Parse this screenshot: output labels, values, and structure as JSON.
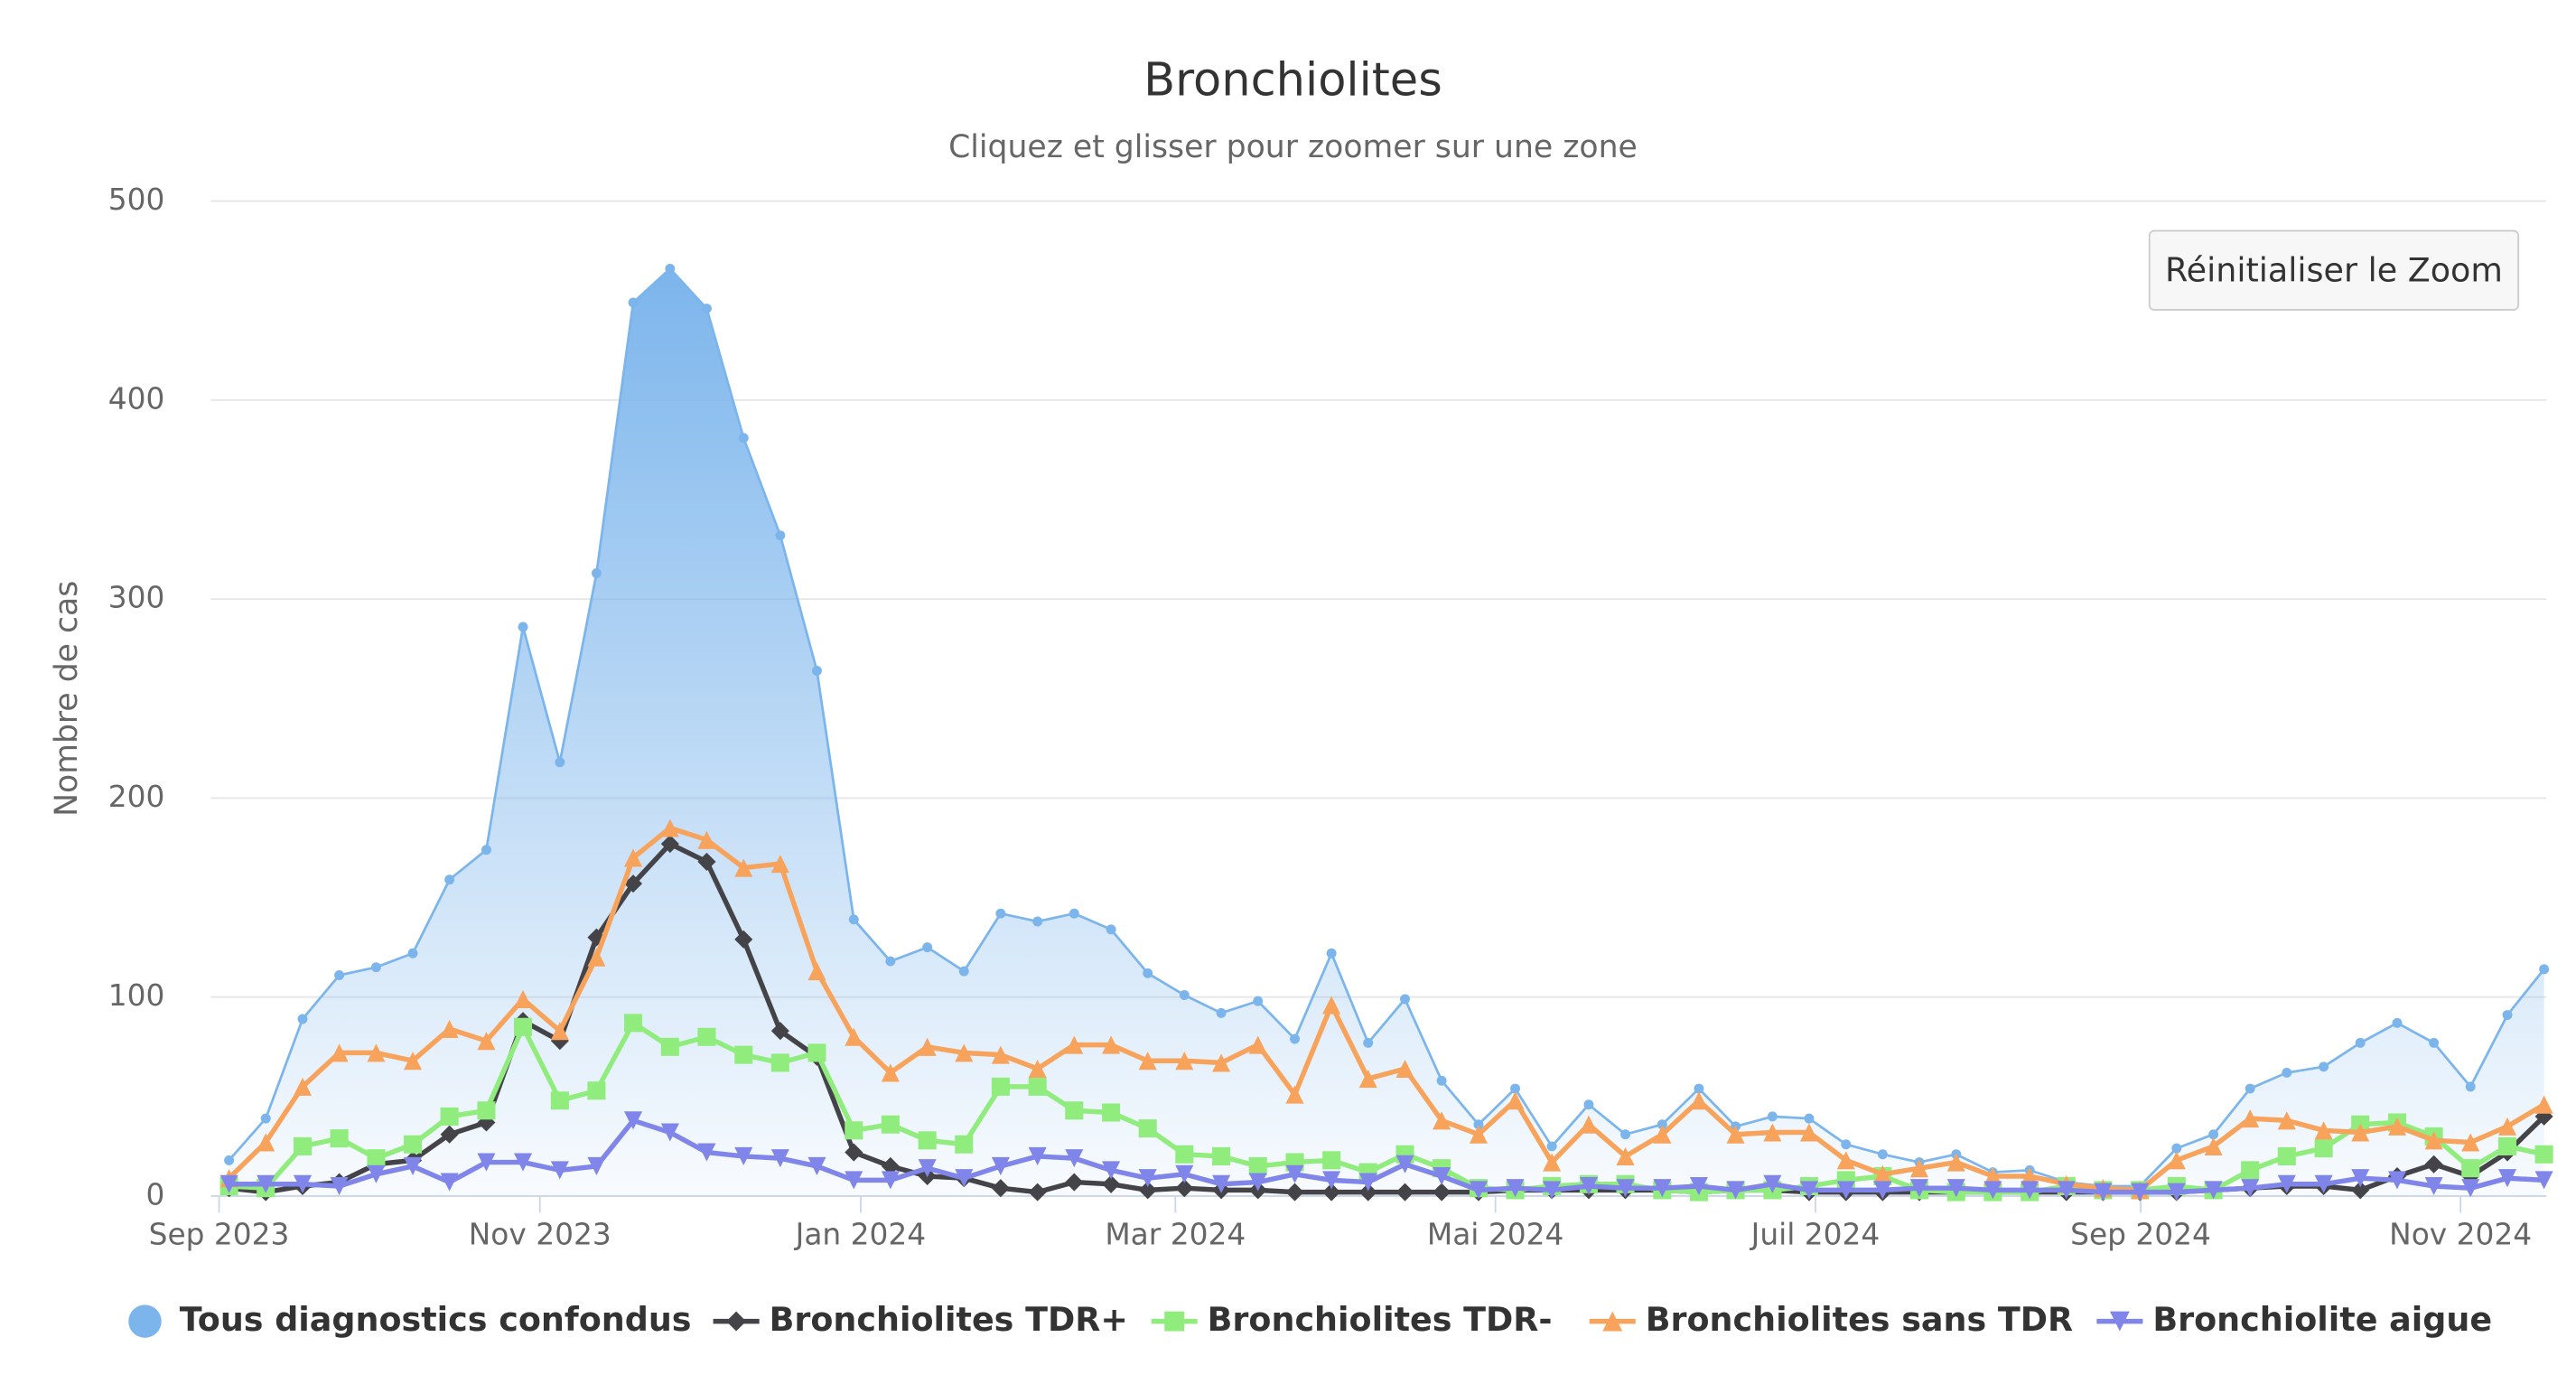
{
  "chart_data": {
    "type": "line",
    "title": "Bronchiolites",
    "subtitle": "Cliquez et glisser pour zoomer sur une zone",
    "y_label": "Nombre de cas",
    "button": "Réinitialiser le Zoom",
    "grid": true,
    "legend": "bottom",
    "xlim": [
      2023.6615,
      2024.878
    ],
    "xticks": [
      {
        "value": 2023.6658,
        "label": "Sep 2023"
      },
      {
        "value": 2023.8329,
        "label": "Nov 2023"
      },
      {
        "value": 2024.0,
        "label": "Jan 2024"
      },
      {
        "value": 2024.1639,
        "label": "Mar 2024"
      },
      {
        "value": 2024.3306,
        "label": "Mai 2024"
      },
      {
        "value": 2024.4973,
        "label": "Juil 2024"
      },
      {
        "value": 2024.6667,
        "label": "Sep 2024"
      },
      {
        "value": 2024.8333,
        "label": "Nov 2024"
      }
    ],
    "ylim": [
      0,
      500
    ],
    "yticks": [
      0,
      100,
      200,
      300,
      400,
      500
    ],
    "x": [
      2023.671,
      2023.6901,
      2023.7093,
      2023.7284,
      2023.7476,
      2023.7667,
      2023.7858,
      2023.805,
      2023.8241,
      2023.8433,
      2023.8624,
      2023.8815,
      2023.9007,
      2023.9198,
      2023.939,
      2023.9581,
      2023.9772,
      2023.9964,
      2024.0155,
      2024.0347,
      2024.0538,
      2024.0729,
      2024.0921,
      2024.1112,
      2024.1304,
      2024.1495,
      2024.1686,
      2024.1878,
      2024.2069,
      2024.2261,
      2024.2452,
      2024.2643,
      2024.2835,
      2024.3026,
      2024.3218,
      2024.3409,
      2024.36,
      2024.3792,
      2024.3983,
      2024.4175,
      2024.4366,
      2024.4557,
      2024.4749,
      2024.494,
      2024.5132,
      2024.5323,
      2024.5514,
      2024.5706,
      2024.5897,
      2024.6089,
      2024.628,
      2024.6471,
      2024.6663,
      2024.6854,
      2024.7046,
      2024.7237,
      2024.7428,
      2024.762,
      2024.7811,
      2024.8003,
      2024.8194,
      2024.8385,
      2024.8577,
      2024.8768
    ],
    "series": [
      {
        "name": "Tous diagnostics confondus",
        "color": "#7cb5ec",
        "area": true,
        "marker": "circle",
        "values": [
          18,
          39,
          89,
          111,
          115,
          122,
          159,
          174,
          286,
          218,
          313,
          449,
          466,
          446,
          381,
          332,
          264,
          139,
          118,
          125,
          113,
          142,
          138,
          142,
          134,
          112,
          101,
          92,
          98,
          79,
          122,
          77,
          99,
          58,
          36,
          54,
          25,
          46,
          31,
          36,
          54,
          35,
          40,
          39,
          26,
          21,
          17,
          21,
          12,
          13,
          7,
          5,
          5,
          24,
          31,
          54,
          62,
          65,
          77,
          87,
          77,
          55,
          91,
          114
        ]
      },
      {
        "name": "Bronchiolites TDR+",
        "color": "#434348",
        "marker": "diamond",
        "values": [
          4,
          2,
          5,
          7,
          16,
          18,
          31,
          37,
          88,
          78,
          130,
          157,
          177,
          168,
          129,
          83,
          70,
          22,
          15,
          10,
          9,
          4,
          2,
          7,
          6,
          3,
          4,
          3,
          3,
          2,
          2,
          2,
          2,
          2,
          2,
          3,
          3,
          3,
          3,
          3,
          2,
          3,
          3,
          2,
          2,
          2,
          2,
          2,
          2,
          2,
          2,
          2,
          2,
          2,
          3,
          4,
          5,
          5,
          3,
          10,
          16,
          10,
          22,
          40
        ]
      },
      {
        "name": "Bronchiolites TDR-",
        "color": "#90ed7d",
        "marker": "square",
        "values": [
          5,
          4,
          25,
          29,
          19,
          26,
          40,
          43,
          85,
          48,
          53,
          87,
          75,
          80,
          71,
          67,
          72,
          33,
          36,
          28,
          26,
          55,
          55,
          43,
          42,
          34,
          21,
          20,
          15,
          17,
          18,
          12,
          21,
          14,
          4,
          3,
          5,
          6,
          6,
          3,
          2,
          3,
          3,
          5,
          8,
          10,
          3,
          2,
          2,
          2,
          5,
          3,
          3,
          5,
          3,
          13,
          20,
          24,
          36,
          37,
          30,
          14,
          25,
          21
        ]
      },
      {
        "name": "Bronchiolites sans TDR",
        "color": "#f7a35c",
        "marker": "triangle",
        "values": [
          9,
          27,
          55,
          72,
          72,
          68,
          84,
          78,
          99,
          83,
          120,
          170,
          185,
          179,
          165,
          167,
          113,
          80,
          62,
          75,
          72,
          71,
          64,
          76,
          76,
          68,
          68,
          67,
          76,
          51,
          96,
          59,
          64,
          38,
          31,
          48,
          17,
          36,
          20,
          31,
          48,
          31,
          32,
          32,
          18,
          11,
          14,
          17,
          10,
          10,
          6,
          4,
          3,
          18,
          25,
          39,
          38,
          33,
          32,
          35,
          28,
          27,
          35,
          46
        ]
      },
      {
        "name": "Bronchiolite aigue",
        "color": "#8085e9",
        "marker": "triangle-down",
        "values": [
          6,
          6,
          6,
          5,
          11,
          15,
          7,
          17,
          17,
          13,
          15,
          38,
          32,
          22,
          20,
          19,
          15,
          8,
          8,
          14,
          9,
          15,
          20,
          19,
          13,
          9,
          11,
          6,
          7,
          11,
          8,
          7,
          16,
          10,
          3,
          4,
          3,
          5,
          4,
          4,
          5,
          3,
          6,
          3,
          3,
          3,
          4,
          4,
          3,
          3,
          3,
          2,
          2,
          2,
          3,
          4,
          6,
          6,
          9,
          8,
          5,
          4,
          9,
          8
        ]
      }
    ]
  }
}
